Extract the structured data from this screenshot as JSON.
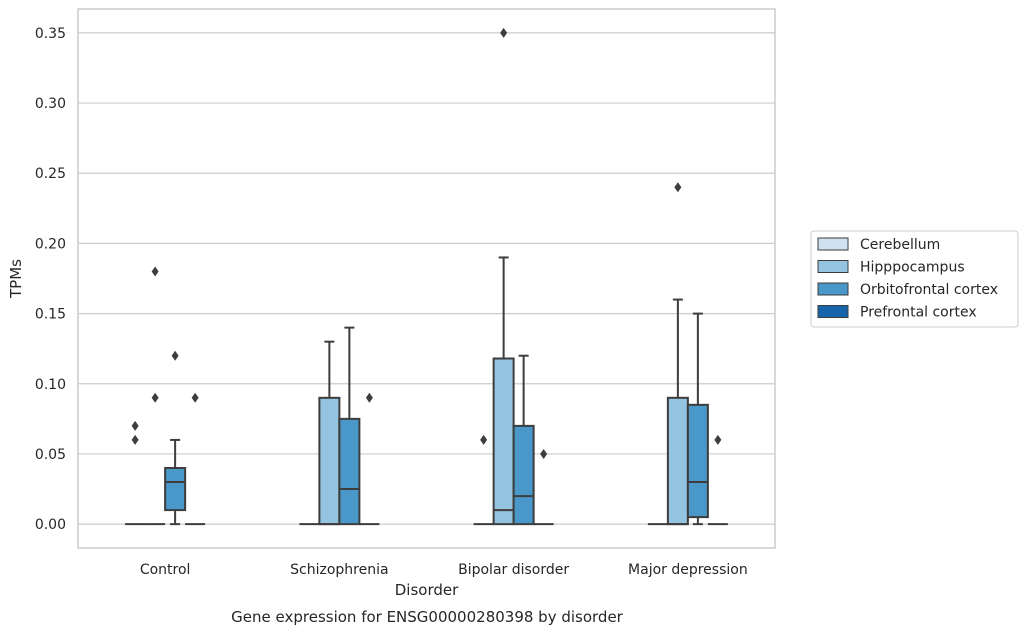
{
  "chart_data": {
    "type": "box",
    "title": "",
    "caption": "Gene expression for ENSG00000280398 by disorder",
    "xlabel": "Disorder",
    "ylabel": "TPMs",
    "ylim": [
      -0.017,
      0.367
    ],
    "yticks": [
      "0.00",
      "0.05",
      "0.10",
      "0.15",
      "0.20",
      "0.25",
      "0.30",
      "0.35"
    ],
    "ytick_values": [
      0,
      0.05,
      0.1,
      0.15,
      0.2,
      0.25,
      0.3,
      0.35
    ],
    "grid": true,
    "legend_position": "right",
    "categories": [
      "Control",
      "Schizophrenia",
      "Bipolar disorder",
      "Major depression"
    ],
    "series": [
      {
        "name": "Cerebellum",
        "color": "#d0e1f2",
        "boxes": [
          {
            "min": 0,
            "q1": 0,
            "median": 0,
            "q3": 0,
            "max": 0,
            "outliers": [
              0.06,
              0.07
            ]
          },
          {
            "min": 0,
            "q1": 0,
            "median": 0,
            "q3": 0,
            "max": 0,
            "outliers": []
          },
          {
            "min": 0,
            "q1": 0,
            "median": 0,
            "q3": 0,
            "max": 0,
            "outliers": [
              0.06
            ]
          },
          {
            "min": 0,
            "q1": 0,
            "median": 0,
            "q3": 0,
            "max": 0,
            "outliers": []
          }
        ]
      },
      {
        "name": "Hipppocampus",
        "color": "#94c4df",
        "boxes": [
          {
            "min": 0,
            "q1": 0,
            "median": 0,
            "q3": 0,
            "max": 0,
            "outliers": [
              0.09,
              0.18
            ]
          },
          {
            "min": 0,
            "q1": 0,
            "median": 0,
            "q3": 0.09,
            "max": 0.13,
            "outliers": []
          },
          {
            "min": 0,
            "q1": 0,
            "median": 0.01,
            "q3": 0.118,
            "max": 0.19,
            "outliers": [
              0.35
            ]
          },
          {
            "min": 0,
            "q1": 0,
            "median": 0,
            "q3": 0.09,
            "max": 0.16,
            "outliers": [
              0.24
            ]
          }
        ]
      },
      {
        "name": "Orbitofrontal cortex",
        "color": "#4a98c9",
        "boxes": [
          {
            "min": 0,
            "q1": 0.01,
            "median": 0.03,
            "q3": 0.04,
            "max": 0.06,
            "outliers": [
              0.12
            ]
          },
          {
            "min": 0,
            "q1": 0,
            "median": 0.025,
            "q3": 0.075,
            "max": 0.14,
            "outliers": []
          },
          {
            "min": 0,
            "q1": 0,
            "median": 0.02,
            "q3": 0.07,
            "max": 0.12,
            "outliers": []
          },
          {
            "min": 0,
            "q1": 0.005,
            "median": 0.03,
            "q3": 0.085,
            "max": 0.15,
            "outliers": []
          }
        ]
      },
      {
        "name": "Prefrontal cortex",
        "color": "#1764ab",
        "boxes": [
          {
            "min": 0,
            "q1": 0,
            "median": 0,
            "q3": 0,
            "max": 0,
            "outliers": [
              0.09
            ]
          },
          {
            "min": 0,
            "q1": 0,
            "median": 0,
            "q3": 0,
            "max": 0,
            "outliers": [
              0.09
            ]
          },
          {
            "min": 0,
            "q1": 0,
            "median": 0,
            "q3": 0,
            "max": 0,
            "outliers": [
              0.05
            ]
          },
          {
            "min": 0,
            "q1": 0,
            "median": 0,
            "q3": 0,
            "max": 0,
            "outliers": [
              0.06
            ]
          }
        ]
      }
    ]
  }
}
